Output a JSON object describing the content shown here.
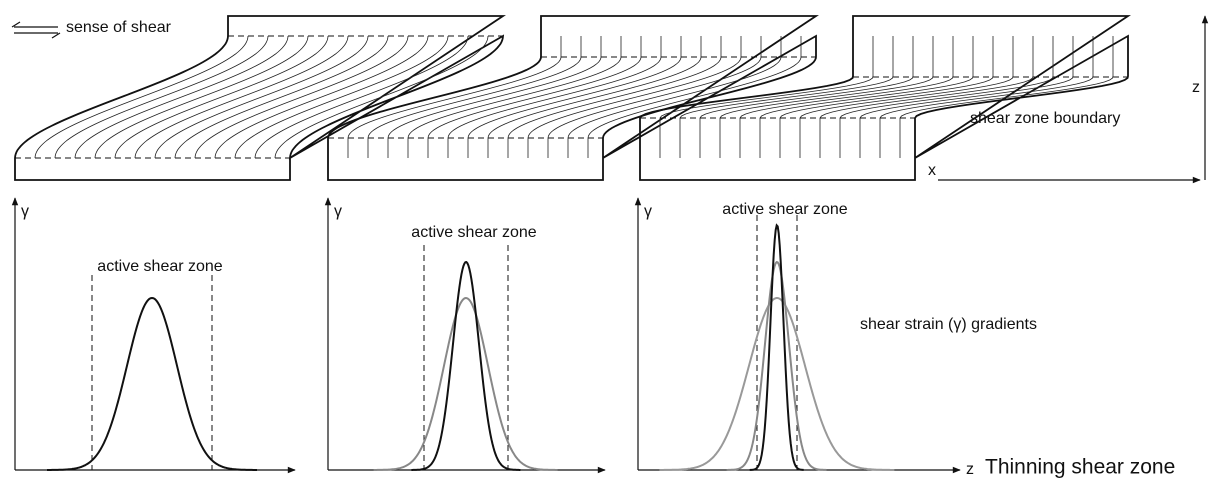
{
  "header": {
    "shear_sense": "sense of shear",
    "boundary_label": "shear zone boundary",
    "z_axis": "z",
    "x_axis": "x"
  },
  "panels": [
    {
      "y_axis": "γ",
      "zone_label": "active shear zone"
    },
    {
      "y_axis": "γ",
      "zone_label": "active shear zone"
    },
    {
      "y_axis": "γ",
      "zone_label": "active shear zone",
      "x_axis": "z"
    }
  ],
  "gradient_label": "shear strain (γ) gradients",
  "caption": "Thinning shear zone"
}
